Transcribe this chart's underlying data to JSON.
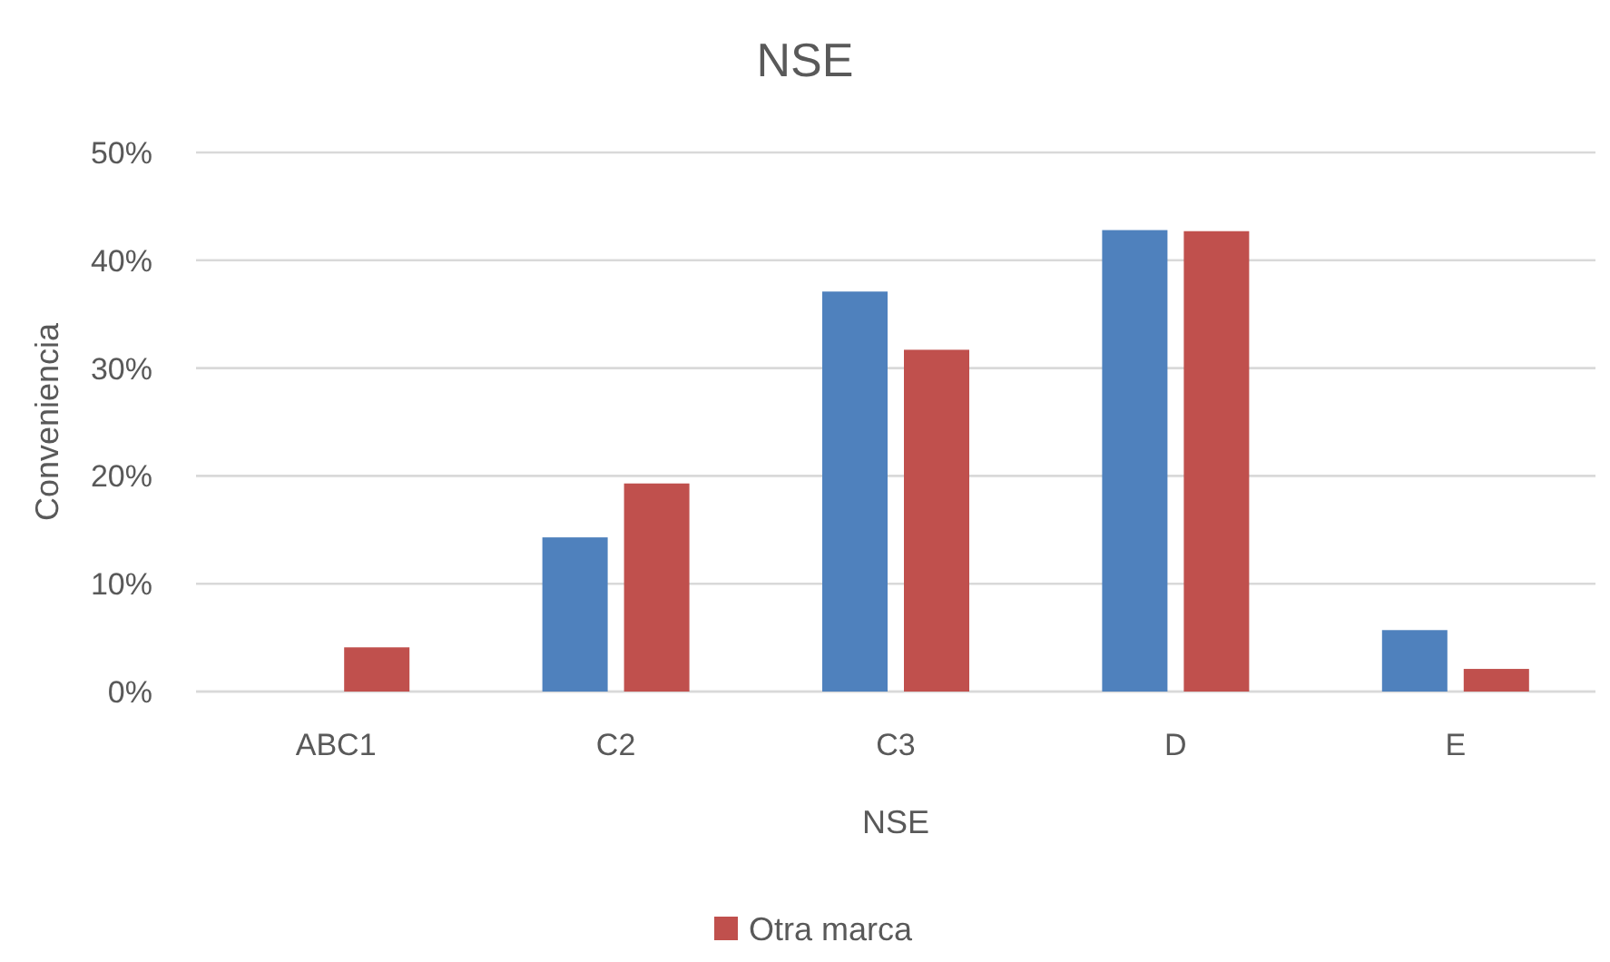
{
  "chart_data": {
    "type": "bar",
    "title": "NSE",
    "xlabel": "NSE",
    "ylabel": "Conveniencia",
    "categories": [
      "ABC1",
      "C2",
      "C3",
      "D",
      "E"
    ],
    "series": [
      {
        "color": "#4f81bd",
        "values": [
          0,
          14.3,
          37.1,
          42.8,
          5.7
        ]
      },
      {
        "name": "Otra marca",
        "color": "#c0504d",
        "values": [
          4.1,
          19.3,
          31.7,
          42.7,
          2.1
        ]
      }
    ],
    "ylim": [
      0,
      50
    ],
    "yticks": [
      {
        "value": 0,
        "label": "0%"
      },
      {
        "value": 10,
        "label": "10%"
      },
      {
        "value": 20,
        "label": "20%"
      },
      {
        "value": 30,
        "label": "30%"
      },
      {
        "value": 40,
        "label": "40%"
      },
      {
        "value": 50,
        "label": "50%"
      }
    ],
    "grid": "y",
    "legend": "bottom"
  }
}
